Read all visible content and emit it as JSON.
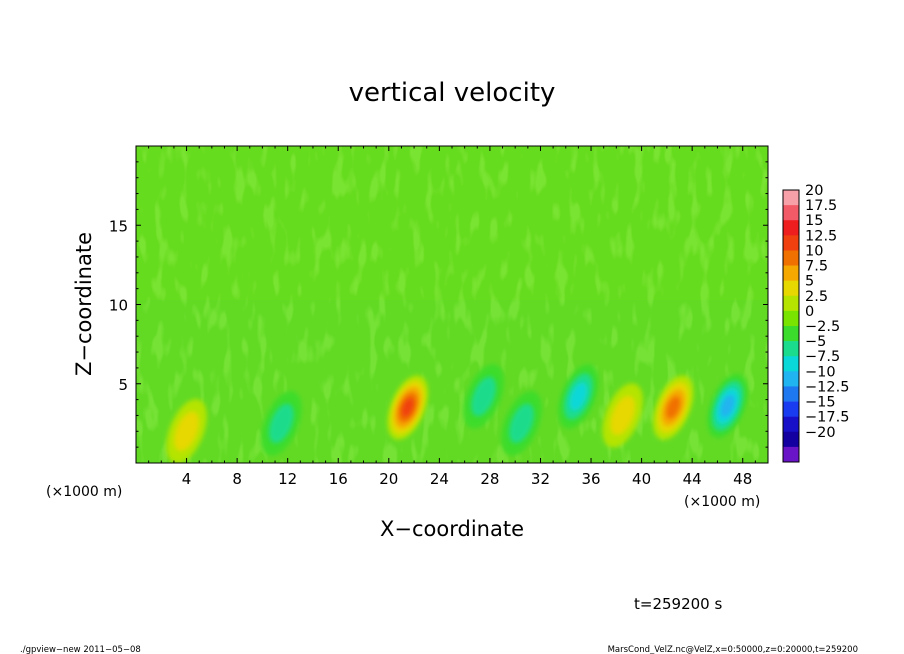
{
  "chart_data": {
    "type": "heatmap",
    "title": "vertical velocity",
    "xlabel": "X−coordinate",
    "ylabel": "Z−coordinate",
    "x_unit_left": "(×1000 m)",
    "x_unit_right": "(×1000 m)",
    "xlim": [
      0,
      50
    ],
    "ylim": [
      0,
      20
    ],
    "x_ticks": [
      4,
      8,
      12,
      16,
      20,
      24,
      28,
      32,
      36,
      40,
      44,
      48
    ],
    "y_ticks": [
      5,
      10,
      15
    ],
    "colorbar": {
      "levels": [
        "20",
        "17.5",
        "15",
        "12.5",
        "10",
        "7.5",
        "5",
        "2.5",
        "0",
        "−2.5",
        "−5",
        "−7.5",
        "−10",
        "−12.5",
        "−15",
        "−17.5",
        "−20"
      ],
      "colors": [
        "#f7a0a8",
        "#f25a68",
        "#ee1e1e",
        "#f04010",
        "#f07000",
        "#f5a800",
        "#e6d800",
        "#b4e400",
        "#78e400",
        "#3cdc2c",
        "#1adc8c",
        "#0ad8d8",
        "#20b4f0",
        "#1e78f0",
        "#1a3cf0",
        "#1810c8",
        "#1400a0",
        "#6a14c8"
      ]
    },
    "features": [
      {
        "x": 21.5,
        "z": 3.5,
        "value": 12.5
      },
      {
        "x": 42.5,
        "z": 3.5,
        "value": 10
      },
      {
        "x": 27.5,
        "z": 4.2,
        "value": -5
      },
      {
        "x": 35.0,
        "z": 4.2,
        "value": -7.5
      },
      {
        "x": 46.8,
        "z": 3.6,
        "value": -10
      },
      {
        "x": 4.0,
        "z": 2.0,
        "value": 5
      },
      {
        "x": 11.5,
        "z": 2.5,
        "value": -5
      },
      {
        "x": 30.5,
        "z": 2.5,
        "value": -5
      },
      {
        "x": 38.5,
        "z": 3.0,
        "value": 5
      }
    ],
    "time_label": "t=259200 s"
  },
  "footer": {
    "left": "./gpview−new   2011−05−08",
    "right": "MarsCond_VelZ.nc@VelZ,x=0:50000,z=0:20000,t=259200"
  }
}
